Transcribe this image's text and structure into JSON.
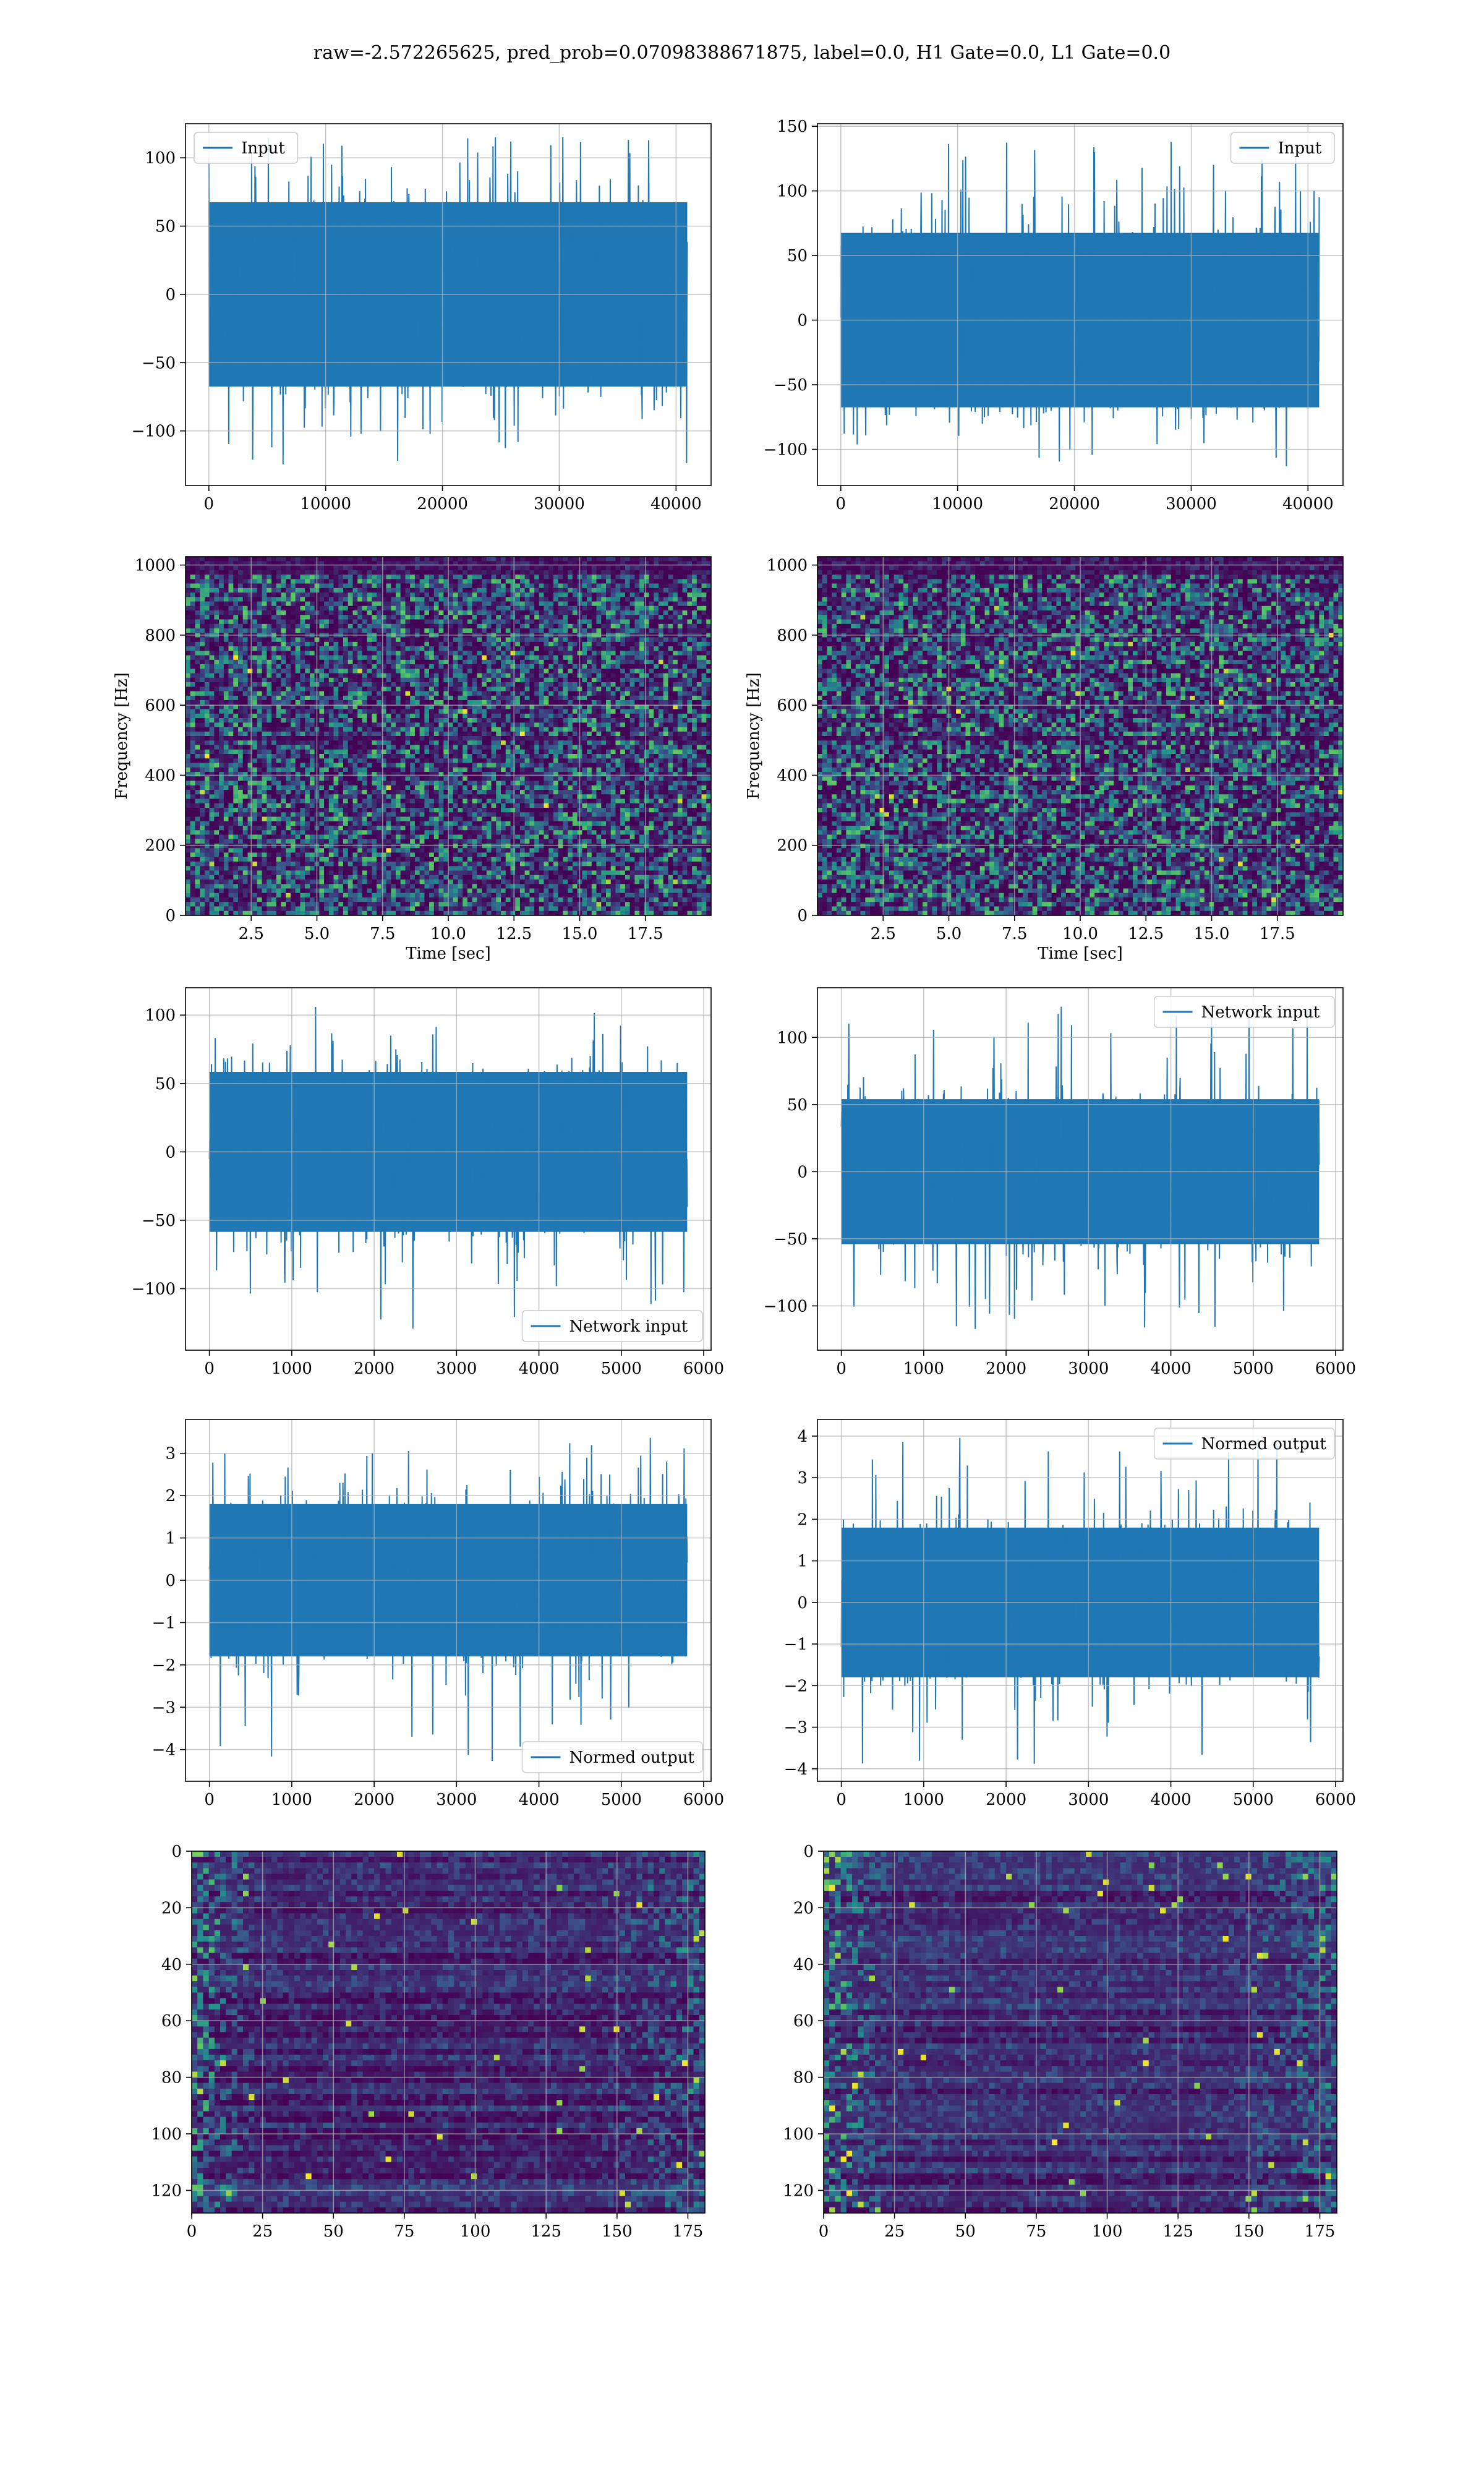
{
  "figure": {
    "title": "raw=-2.572265625, pred_prob=0.07098388671875, label=0.0, H1 Gate=0.0, L1 Gate=0.0",
    "colors": {
      "line": "#1f77b4",
      "grid": "#b0b0b0",
      "viridis_low": "#440154",
      "viridis_mid": "#21918c",
      "viridis_high": "#fde725"
    }
  },
  "chart_data": [
    {
      "type": "line",
      "panel": "row1-left",
      "legend": [
        "Input"
      ],
      "legend_loc": "upper left",
      "xlim": [
        -2000,
        43000
      ],
      "ylim": [
        -140,
        125
      ],
      "xticks": [
        0,
        10000,
        20000,
        30000,
        40000
      ],
      "xticklabels": [
        "0",
        "10000",
        "20000",
        "30000",
        "40000"
      ],
      "yticks": [
        -100,
        -50,
        0,
        50,
        100
      ],
      "yticklabels": [
        "−100",
        "−50",
        "0",
        "50",
        "100"
      ],
      "x_extent": [
        0,
        40960
      ],
      "envelope": [
        -75,
        75
      ],
      "peak_range": [
        -125,
        118
      ],
      "grid": true
    },
    {
      "type": "line",
      "panel": "row1-right",
      "legend": [
        "Input"
      ],
      "legend_loc": "upper right",
      "xlim": [
        -2000,
        43000
      ],
      "ylim": [
        -128,
        152
      ],
      "xticks": [
        0,
        10000,
        20000,
        30000,
        40000
      ],
      "xticklabels": [
        "0",
        "10000",
        "20000",
        "30000",
        "40000"
      ],
      "yticks": [
        -100,
        -50,
        0,
        50,
        100,
        150
      ],
      "yticklabels": [
        "−100",
        "−50",
        "0",
        "50",
        "100",
        "150"
      ],
      "x_extent": [
        0,
        40960
      ],
      "envelope": [
        -75,
        75
      ],
      "peak_range": [
        -120,
        138
      ],
      "grid": true
    },
    {
      "type": "heatmap",
      "panel": "row2-left",
      "colormap": "viridis",
      "xlim": [
        0,
        20
      ],
      "ylim": [
        0,
        1024
      ],
      "xticks": [
        2.5,
        5.0,
        7.5,
        10.0,
        12.5,
        15.0,
        17.5
      ],
      "xticklabels": [
        "2.5",
        "5.0",
        "7.5",
        "10.0",
        "12.5",
        "15.0",
        "17.5"
      ],
      "yticks": [
        0,
        200,
        400,
        600,
        800,
        1000
      ],
      "yticklabels": [
        "0",
        "200",
        "400",
        "600",
        "800",
        "1000"
      ],
      "xlabel": "Time [sec]",
      "ylabel": "Frequency [Hz]",
      "grid": true
    },
    {
      "type": "heatmap",
      "panel": "row2-right",
      "colormap": "viridis",
      "xlim": [
        0,
        20
      ],
      "ylim": [
        0,
        1024
      ],
      "xticks": [
        2.5,
        5.0,
        7.5,
        10.0,
        12.5,
        15.0,
        17.5
      ],
      "xticklabels": [
        "2.5",
        "5.0",
        "7.5",
        "10.0",
        "12.5",
        "15.0",
        "17.5"
      ],
      "yticks": [
        0,
        200,
        400,
        600,
        800,
        1000
      ],
      "yticklabels": [
        "0",
        "200",
        "400",
        "600",
        "800",
        "1000"
      ],
      "xlabel": "Time [sec]",
      "ylabel": "Frequency [Hz]",
      "grid": true
    },
    {
      "type": "line",
      "panel": "row3-left",
      "legend": [
        "Network input"
      ],
      "legend_loc": "lower right",
      "xlim": [
        -290,
        6090
      ],
      "ylim": [
        -145,
        120
      ],
      "xticks": [
        0,
        1000,
        2000,
        3000,
        4000,
        5000,
        6000
      ],
      "xticklabels": [
        "0",
        "1000",
        "2000",
        "3000",
        "4000",
        "5000",
        "6000"
      ],
      "yticks": [
        -100,
        -50,
        0,
        50,
        100
      ],
      "yticklabels": [
        "−100",
        "−50",
        "0",
        "50",
        "100"
      ],
      "x_extent": [
        0,
        5800
      ],
      "envelope": [
        -65,
        65
      ],
      "peak_range": [
        -133,
        106
      ],
      "grid": true
    },
    {
      "type": "line",
      "panel": "row3-right",
      "legend": [
        "Network input"
      ],
      "legend_loc": "upper right",
      "xlim": [
        -290,
        6090
      ],
      "ylim": [
        -133,
        137
      ],
      "xticks": [
        0,
        1000,
        2000,
        3000,
        4000,
        5000,
        6000
      ],
      "xticklabels": [
        "0",
        "1000",
        "2000",
        "3000",
        "4000",
        "5000",
        "6000"
      ],
      "yticks": [
        -100,
        -50,
        0,
        50,
        100
      ],
      "yticklabels": [
        "−100",
        "−50",
        "0",
        "50",
        "100"
      ],
      "x_extent": [
        0,
        5800
      ],
      "envelope": [
        -60,
        60
      ],
      "peak_range": [
        -121,
        124
      ],
      "grid": true
    },
    {
      "type": "line",
      "panel": "row4-left",
      "legend": [
        "Normed output"
      ],
      "legend_loc": "lower right",
      "xlim": [
        -290,
        6090
      ],
      "ylim": [
        -4.75,
        3.8
      ],
      "xticks": [
        0,
        1000,
        2000,
        3000,
        4000,
        5000,
        6000
      ],
      "xticklabels": [
        "0",
        "1000",
        "2000",
        "3000",
        "4000",
        "5000",
        "6000"
      ],
      "yticks": [
        -4,
        -3,
        -2,
        -1,
        0,
        1,
        2,
        3
      ],
      "yticklabels": [
        "−4",
        "−3",
        "−2",
        "−1",
        "0",
        "1",
        "2",
        "3"
      ],
      "x_extent": [
        0,
        5800
      ],
      "envelope": [
        -2,
        2
      ],
      "peak_range": [
        -4.3,
        3.4
      ],
      "grid": true
    },
    {
      "type": "line",
      "panel": "row4-right",
      "legend": [
        "Normed output"
      ],
      "legend_loc": "upper right",
      "xlim": [
        -290,
        6090
      ],
      "ylim": [
        -4.3,
        4.4
      ],
      "xticks": [
        0,
        1000,
        2000,
        3000,
        4000,
        5000,
        6000
      ],
      "xticklabels": [
        "0",
        "1000",
        "2000",
        "3000",
        "4000",
        "5000",
        "6000"
      ],
      "yticks": [
        -4,
        -3,
        -2,
        -1,
        0,
        1,
        2,
        3,
        4
      ],
      "yticklabels": [
        "−4",
        "−3",
        "−2",
        "−1",
        "0",
        "1",
        "2",
        "3",
        "4"
      ],
      "x_extent": [
        0,
        5800
      ],
      "envelope": [
        -2,
        2
      ],
      "peak_range": [
        -3.9,
        4.0
      ],
      "grid": true
    },
    {
      "type": "heatmap",
      "panel": "row5-left",
      "colormap": "viridis",
      "y_inverted": true,
      "xlim": [
        0,
        181
      ],
      "ylim": [
        0,
        128
      ],
      "xticks": [
        0,
        25,
        50,
        75,
        100,
        125,
        150,
        175
      ],
      "xticklabels": [
        "0",
        "25",
        "50",
        "75",
        "100",
        "125",
        "150",
        "175"
      ],
      "yticks": [
        0,
        20,
        40,
        60,
        80,
        100,
        120
      ],
      "yticklabels": [
        "0",
        "20",
        "40",
        "60",
        "80",
        "100",
        "120"
      ],
      "grid": true
    },
    {
      "type": "heatmap",
      "panel": "row5-right",
      "colormap": "viridis",
      "y_inverted": true,
      "xlim": [
        0,
        181
      ],
      "ylim": [
        0,
        128
      ],
      "xticks": [
        0,
        25,
        50,
        75,
        100,
        125,
        150,
        175
      ],
      "xticklabels": [
        "0",
        "25",
        "50",
        "75",
        "100",
        "125",
        "150",
        "175"
      ],
      "yticks": [
        0,
        20,
        40,
        60,
        80,
        100,
        120
      ],
      "yticklabels": [
        "0",
        "20",
        "40",
        "60",
        "80",
        "100",
        "120"
      ],
      "grid": true
    }
  ]
}
